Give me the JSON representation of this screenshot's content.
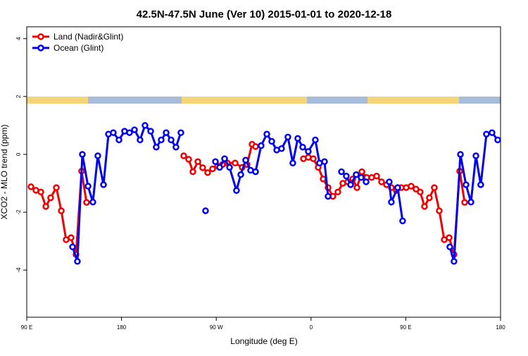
{
  "chart_data": {
    "type": "line",
    "title": "42.5N-47.5N June (Ver 10)   2015-01-01 to 2020-12-18",
    "x_label": "Longitude (deg E)",
    "y_label": "XCO2 - MLO trend (ppm)",
    "xlim": [
      90,
      540
    ],
    "ylim": [
      -5.63,
      4.41
    ],
    "xticks": [
      {
        "value": 90,
        "label": "90 E"
      },
      {
        "value": 180,
        "label": "180"
      },
      {
        "value": 270,
        "label": "90 W"
      },
      {
        "value": 360,
        "label": "0"
      },
      {
        "value": 450,
        "label": "90 E"
      },
      {
        "value": 540,
        "label": "180"
      }
    ],
    "yticks": [
      -4,
      -2,
      0,
      2,
      4
    ],
    "legend_position": "top-left",
    "series": [
      {
        "name": "Land (Nadir&Glint)",
        "color": "#ee0000",
        "x": [
          94.0,
          98.7,
          103.4,
          108.1,
          112.7,
          118.1,
          122.8,
          127.4,
          132.1,
          136.8,
          142.1,
          146.8,
          null,
          239.1,
          243.8,
          247.8,
          252.5,
          257.1,
          261.8,
          266.5,
          271.2,
          275.9,
          280.6,
          287.9,
          294.6,
          299.3,
          304.0,
          307.3,
          null,
          352.8,
          357.4,
          362.1,
          366.8,
          371.5,
          376.2,
          380.8,
          385.5,
          390.2,
          394.9,
          399.6,
          403.6,
          408.3,
          412.9,
          417.6,
          422.3,
          427.0,
          431.7,
          436.3,
          441.0,
          445.7,
          450.4,
          455.1,
          459.7,
          463.7,
          467.8,
          472.4,
          477.1,
          481.8,
          486.5,
          491.2,
          495.8,
          501.2,
          505.9
        ],
        "values": [
          -1.12,
          -1.24,
          -1.3,
          -1.8,
          -1.5,
          -1.15,
          -1.95,
          -2.95,
          -2.88,
          -3.46,
          -0.58,
          -1.66,
          null,
          -0.05,
          -0.17,
          -0.6,
          -0.25,
          -0.46,
          -0.63,
          -0.5,
          -0.4,
          -0.35,
          -0.3,
          -0.3,
          -0.45,
          -0.35,
          0.35,
          0.27,
          null,
          -0.15,
          -0.1,
          -0.15,
          -0.45,
          -0.85,
          -1.15,
          -1.45,
          -1.3,
          -1.0,
          -0.95,
          -0.85,
          -1.15,
          -0.6,
          -0.8,
          -0.8,
          -0.75,
          -0.95,
          -1.05,
          -1.15,
          -1.25,
          -1.15,
          -1.15,
          -1.1,
          -1.2,
          -1.3,
          -1.8,
          -1.5,
          -1.15,
          -1.95,
          -2.95,
          -2.88,
          -3.46,
          -0.58,
          -1.66
        ]
      },
      {
        "name": "Ocean (Glint)",
        "color": "#0000ee",
        "x": [
          133.5,
          138.1,
          142.8,
          148.2,
          152.8,
          157.5,
          162.9,
          167.6,
          172.2,
          177.6,
          182.9,
          187.6,
          192.3,
          197.6,
          202.3,
          207.7,
          213.0,
          217.7,
          222.4,
          227.1,
          231.7,
          236.4,
          null,
          259.8,
          null,
          269.2,
          273.2,
          277.9,
          282.6,
          289.2,
          293.3,
          297.9,
          302.6,
          307.3,
          312.6,
          318.0,
          322.7,
          327.4,
          332.0,
          338.0,
          342.7,
          347.4,
          352.1,
          357.4,
          364.1,
          368.1,
          372.8,
          376.2,
          null,
          388.9,
          393.5,
          397.6,
          402.9,
          407.6,
          412.3,
          null,
          434.3,
          436.3,
          442.3,
          447.0,
          null,
          491.8,
          495.8,
          501.9,
          507.2,
          511.9,
          516.6,
          521.2,
          526.6,
          531.9,
          537.3
        ],
        "values": [
          -3.2,
          -3.7,
          0.0,
          -1.1,
          -1.65,
          -0.05,
          -1.05,
          0.7,
          0.75,
          0.5,
          0.8,
          0.75,
          0.85,
          0.5,
          1.0,
          0.8,
          0.25,
          0.5,
          0.75,
          0.5,
          0.25,
          0.75,
          null,
          -1.95,
          null,
          -0.25,
          -0.45,
          -0.15,
          -0.45,
          -1.25,
          -0.7,
          -0.2,
          -0.55,
          -0.6,
          0.3,
          0.7,
          0.45,
          0.15,
          0.2,
          0.6,
          -0.3,
          0.55,
          0.25,
          0.1,
          0.5,
          -0.3,
          -0.25,
          -1.45,
          null,
          -0.6,
          -0.75,
          -1.05,
          -0.7,
          -0.8,
          -0.95,
          null,
          -0.95,
          -1.65,
          -1.15,
          -2.3,
          null,
          -3.2,
          -3.7,
          0.0,
          -1.05,
          -1.65,
          -0.05,
          -1.05,
          0.7,
          0.75,
          0.5
        ]
      }
    ]
  }
}
